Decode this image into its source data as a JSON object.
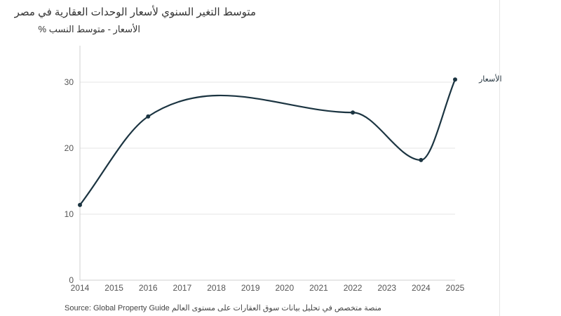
{
  "header": {
    "title": "متوسط التغير السنوي لأسعار الوحدات العقارية في مصر",
    "subtitle": "الأسعار - متوسط النسب %"
  },
  "footer": {
    "source": "Source: Global Property Guide",
    "description": "منصة متخصص في تحليل بيانات سوق العقارات على مستوى العالم"
  },
  "colors": {
    "line": "#1b3441",
    "grid": "#e6e6e6",
    "axis": "#cfcfcf"
  },
  "chart_data": {
    "type": "line",
    "title": "متوسط التغير السنوي لأسعار الوحدات العقارية في مصر",
    "subtitle": "الأسعار - متوسط النسب %",
    "xlabel": "",
    "ylabel": "",
    "xlim": [
      2014,
      2025
    ],
    "ylim": [
      0,
      35
    ],
    "x_ticks": [
      "2014",
      "2015",
      "2016",
      "2017",
      "2018",
      "2019",
      "2020",
      "2021",
      "2022",
      "2023",
      "2024",
      "2025"
    ],
    "y_ticks": [
      0,
      10,
      20,
      30
    ],
    "grid": "horizontal",
    "series": [
      {
        "name": "الأسعار",
        "x": [
          2014,
          2016,
          2022,
          2024,
          2025
        ],
        "values": [
          11.4,
          24.8,
          25.4,
          18.2,
          30.4
        ]
      }
    ]
  }
}
